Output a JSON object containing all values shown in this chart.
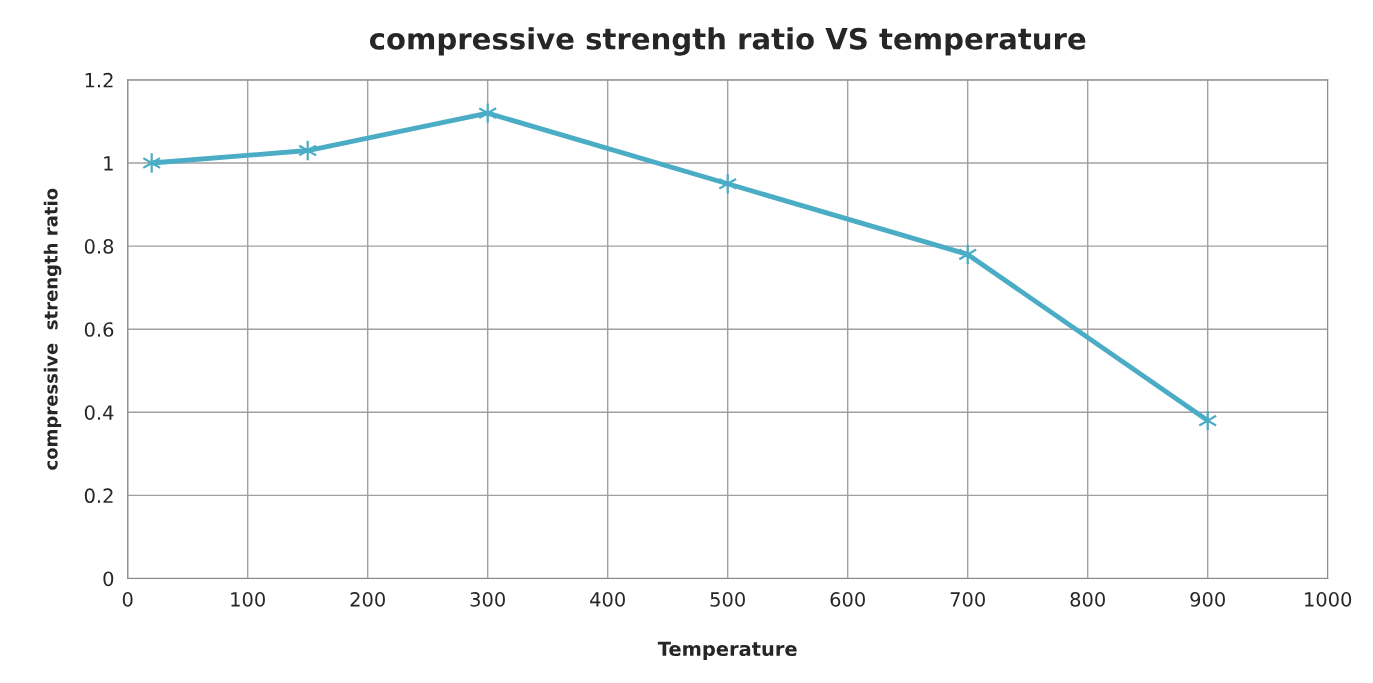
{
  "chart_data": {
    "type": "line",
    "title": "compressive strength ratio VS temperature",
    "xlabel": "Temperature",
    "ylabel": "compressive  strength ratio",
    "x": [
      20,
      150,
      300,
      500,
      700,
      900
    ],
    "series": [
      {
        "color": "#4bacc6",
        "values": [
          1.0,
          1.03,
          1.12,
          0.95,
          0.78,
          0.38
        ]
      }
    ],
    "xlim": [
      0,
      1000
    ],
    "xticks": [
      0,
      100,
      200,
      300,
      400,
      500,
      600,
      700,
      800,
      900,
      1000
    ],
    "ylim": [
      0,
      1.2
    ],
    "yticks": [
      0,
      0.2,
      0.4,
      0.6,
      0.8,
      1,
      1.2
    ],
    "grid": true,
    "legend": false,
    "marker": "cross",
    "line_style": "solid"
  }
}
